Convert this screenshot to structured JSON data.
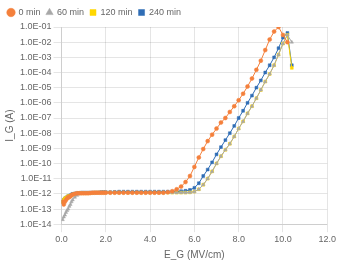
{
  "chart_data": {
    "type": "line",
    "xlabel": "E_G (MV/cm)",
    "ylabel": "I_G (A)",
    "log": "y",
    "grid": true,
    "legend": "top-left",
    "xlim": [
      0,
      12
    ],
    "ylim": [
      1e-14,
      0.1
    ],
    "xticks": [
      {
        "value": 0,
        "label": "0.0"
      },
      {
        "value": 2,
        "label": "2.0"
      },
      {
        "value": 4,
        "label": "4.0"
      },
      {
        "value": 6,
        "label": "6.0"
      },
      {
        "value": 8,
        "label": "8.0"
      },
      {
        "value": 10,
        "label": "10.0"
      },
      {
        "value": 12,
        "label": "12.0"
      }
    ],
    "yticks": [
      {
        "value": 1e-14,
        "label": "1.0E-14"
      },
      {
        "value": 1e-13,
        "label": "1.0E-13"
      },
      {
        "value": 1e-12,
        "label": "1.0E-12"
      },
      {
        "value": 1e-11,
        "label": "1.0E-11"
      },
      {
        "value": 1e-10,
        "label": "1.0E-10"
      },
      {
        "value": 1e-09,
        "label": "1.0E-09"
      },
      {
        "value": 1e-08,
        "label": "1.0E-08"
      },
      {
        "value": 1e-07,
        "label": "1.0E-07"
      },
      {
        "value": 1e-06,
        "label": "1.0E-06"
      },
      {
        "value": 1e-05,
        "label": "1.0E-05"
      },
      {
        "value": 0.0001,
        "label": "1.0E-04"
      },
      {
        "value": 0.001,
        "label": "1.0E-03"
      },
      {
        "value": 0.01,
        "label": "1.0E-02"
      },
      {
        "value": 0.1,
        "label": "1.0E-01"
      }
    ],
    "series": [
      {
        "name": "0 min",
        "color": "#F4803C",
        "marker": "circle",
        "x": [
          0.05,
          0.1,
          0.15,
          0.2,
          0.25,
          0.3,
          0.35,
          0.4,
          0.45,
          0.5,
          0.6,
          0.7,
          0.8,
          0.9,
          1.0,
          1.1,
          1.2,
          1.3,
          1.4,
          1.5,
          1.6,
          1.7,
          1.8,
          1.9,
          2.0,
          2.2,
          2.4,
          2.6,
          2.8,
          3.0,
          3.2,
          3.4,
          3.6,
          3.8,
          4.0,
          4.2,
          4.4,
          4.6,
          4.8,
          5.0,
          5.2,
          5.4,
          5.6,
          5.8,
          6.0,
          6.2,
          6.4,
          6.6,
          6.8,
          7.0,
          7.2,
          7.4,
          7.6,
          7.8,
          8.0,
          8.2,
          8.4,
          8.6,
          8.8,
          9.0,
          9.2,
          9.4,
          9.6,
          9.8,
          10.0,
          10.2
        ],
        "values": [
          3e-13,
          2e-13,
          3e-13,
          4e-13,
          5e-13,
          6e-13,
          6e-13,
          7e-13,
          8e-13,
          9e-13,
          1e-12,
          1.1e-12,
          1.1e-12,
          1.1e-12,
          1.1e-12,
          1.1e-12,
          1.1e-12,
          1.15e-12,
          1.2e-12,
          1.2e-12,
          1.2e-12,
          1.2e-12,
          1.2e-12,
          1.2e-12,
          1.2e-12,
          1.2e-12,
          1.2e-12,
          1.2e-12,
          1.2e-12,
          1.2e-12,
          1.2e-12,
          1.2e-12,
          1.2e-12,
          1.2e-12,
          1.2e-12,
          1.2e-12,
          1.2e-12,
          1.2e-12,
          1.3e-12,
          1.5e-12,
          2e-12,
          3e-12,
          6e-12,
          1.5e-11,
          6e-11,
          2.5e-10,
          9e-10,
          3e-09,
          8e-09,
          2e-08,
          5e-08,
          1e-07,
          2.5e-07,
          6e-07,
          1.5e-06,
          4e-06,
          1.2e-05,
          4e-05,
          0.00015,
          0.0006,
          0.003,
          0.015,
          0.05,
          0.1,
          0.03,
          0.01
        ]
      },
      {
        "name": "60 min",
        "color": "#A8A8A8",
        "marker": "triangle",
        "x": [
          0.05,
          0.1,
          0.15,
          0.2,
          0.25,
          0.3,
          0.35,
          0.4,
          0.45,
          0.5,
          0.6,
          0.7,
          0.8,
          0.9,
          1.0,
          1.1,
          1.2,
          1.3,
          1.4,
          1.5,
          1.6,
          1.7,
          1.8,
          1.9,
          2.0,
          2.2,
          2.4,
          2.6,
          2.8,
          3.0,
          3.2,
          3.4,
          3.6,
          3.8,
          4.0,
          4.2,
          4.4,
          4.6,
          4.8,
          5.0,
          5.2,
          5.4,
          5.6,
          5.8,
          6.0,
          6.2,
          6.4,
          6.6,
          6.8,
          7.0,
          7.2,
          7.4,
          7.6,
          7.8,
          8.0,
          8.2,
          8.4,
          8.6,
          8.8,
          9.0,
          9.2,
          9.4,
          9.6,
          9.8,
          10.0,
          10.2,
          10.4
        ],
        "values": [
          2e-14,
          3e-14,
          4e-14,
          6e-14,
          8e-14,
          1e-13,
          1.5e-13,
          2e-13,
          3e-13,
          4e-13,
          6e-13,
          8e-13,
          1e-12,
          1.1e-12,
          1.1e-12,
          1.1e-12,
          1.1e-12,
          1.1e-12,
          1.15e-12,
          1.2e-12,
          1.2e-12,
          1.2e-12,
          1.2e-12,
          1.2e-12,
          1.2e-12,
          1.2e-12,
          1.2e-12,
          1.2e-12,
          1.2e-12,
          1.2e-12,
          1.2e-12,
          1.2e-12,
          1.2e-12,
          1.2e-12,
          1.2e-12,
          1.2e-12,
          1.2e-12,
          1.2e-12,
          1.2e-12,
          1.2e-12,
          1.2e-12,
          1.2e-12,
          1.2e-12,
          1.25e-12,
          1.4e-12,
          2e-12,
          4e-12,
          1e-11,
          3e-11,
          1e-10,
          3e-10,
          8e-10,
          2e-09,
          6e-09,
          2e-08,
          6e-08,
          2e-07,
          6e-07,
          2e-06,
          7e-06,
          2.5e-05,
          8e-05,
          0.0003,
          0.0015,
          0.008,
          0.03,
          0.01
        ]
      },
      {
        "name": "120 min",
        "color": "#FFD700",
        "marker": "square",
        "x": [
          0.05,
          0.1,
          0.15,
          0.2,
          0.25,
          0.3,
          0.35,
          0.4,
          0.45,
          0.5,
          0.6,
          0.7,
          0.8,
          0.9,
          1.0,
          1.1,
          1.2,
          1.3,
          1.4,
          1.5,
          1.6,
          1.7,
          1.8,
          1.9,
          2.0,
          2.2,
          2.4,
          2.6,
          2.8,
          3.0,
          3.2,
          3.4,
          3.6,
          3.8,
          4.0,
          4.2,
          4.4,
          4.6,
          4.8,
          5.0,
          5.2,
          5.4,
          5.6,
          5.8,
          6.0,
          6.2,
          6.4,
          6.6,
          6.8,
          7.0,
          7.2,
          7.4,
          7.6,
          7.8,
          8.0,
          8.2,
          8.4,
          8.6,
          8.8,
          9.0,
          9.2,
          9.4,
          9.6,
          9.8,
          10.0,
          10.2,
          10.4
        ],
        "values": [
          3e-13,
          4e-13,
          5e-13,
          5.5e-13,
          6e-13,
          7e-13,
          7e-13,
          7.5e-13,
          8e-13,
          9e-13,
          1e-12,
          1.05e-12,
          1.1e-12,
          1.1e-12,
          1.1e-12,
          1.1e-12,
          1.1e-12,
          1.1e-12,
          1.15e-12,
          1.2e-12,
          1.2e-12,
          1.2e-12,
          1.2e-12,
          1.2e-12,
          1.2e-12,
          1.2e-12,
          1.2e-12,
          1.2e-12,
          1.2e-12,
          1.2e-12,
          1.2e-12,
          1.2e-12,
          1.2e-12,
          1.2e-12,
          1.2e-12,
          1.2e-12,
          1.2e-12,
          1.2e-12,
          1.2e-12,
          1.2e-12,
          1.2e-12,
          1.2e-12,
          1.2e-12,
          1.25e-12,
          1.4e-12,
          2e-12,
          4e-12,
          1e-11,
          3e-11,
          1e-10,
          3e-10,
          8e-10,
          2e-09,
          6e-09,
          2e-08,
          6e-08,
          2e-07,
          6e-07,
          2e-06,
          7e-06,
          2.5e-05,
          8e-05,
          0.0003,
          0.0015,
          0.008,
          0.03,
          0.0002
        ]
      },
      {
        "name": "240 min",
        "color": "#2F6DB5",
        "marker": "square",
        "x": [
          0.05,
          0.1,
          0.15,
          0.2,
          0.25,
          0.3,
          0.35,
          0.4,
          0.45,
          0.5,
          0.6,
          0.7,
          0.8,
          0.9,
          1.0,
          1.1,
          1.2,
          1.3,
          1.4,
          1.5,
          1.6,
          1.7,
          1.8,
          1.9,
          2.0,
          2.2,
          2.4,
          2.6,
          2.8,
          3.0,
          3.2,
          3.4,
          3.6,
          3.8,
          4.0,
          4.2,
          4.4,
          4.6,
          4.8,
          5.0,
          5.2,
          5.4,
          5.6,
          5.8,
          6.0,
          6.2,
          6.4,
          6.6,
          6.8,
          7.0,
          7.2,
          7.4,
          7.6,
          7.8,
          8.0,
          8.2,
          8.4,
          8.6,
          8.8,
          9.0,
          9.2,
          9.4,
          9.6,
          9.8,
          10.0,
          10.2,
          10.4
        ],
        "values": [
          3e-13,
          4e-13,
          5e-13,
          5.5e-13,
          6e-13,
          7e-13,
          7.5e-13,
          8e-13,
          9e-13,
          1e-12,
          1.05e-12,
          1.1e-12,
          1.15e-12,
          1.2e-12,
          1.2e-12,
          1.2e-12,
          1.2e-12,
          1.2e-12,
          1.2e-12,
          1.2e-12,
          1.2e-12,
          1.25e-12,
          1.3e-12,
          1.3e-12,
          1.3e-12,
          1.3e-12,
          1.35e-12,
          1.4e-12,
          1.4e-12,
          1.4e-12,
          1.4e-12,
          1.4e-12,
          1.4e-12,
          1.4e-12,
          1.4e-12,
          1.4e-12,
          1.4e-12,
          1.4e-12,
          1.4e-12,
          1.4e-12,
          1.4e-12,
          1.5e-12,
          1.6e-12,
          1.8e-12,
          2.5e-12,
          5e-12,
          1.5e-11,
          4e-11,
          1.2e-10,
          4e-10,
          1.2e-09,
          3.5e-09,
          1e-08,
          3e-08,
          1e-07,
          3e-07,
          1e-06,
          3e-06,
          1e-05,
          3e-05,
          0.0001,
          0.0003,
          0.001,
          0.004,
          0.02,
          0.04,
          0.0003
        ]
      }
    ]
  }
}
